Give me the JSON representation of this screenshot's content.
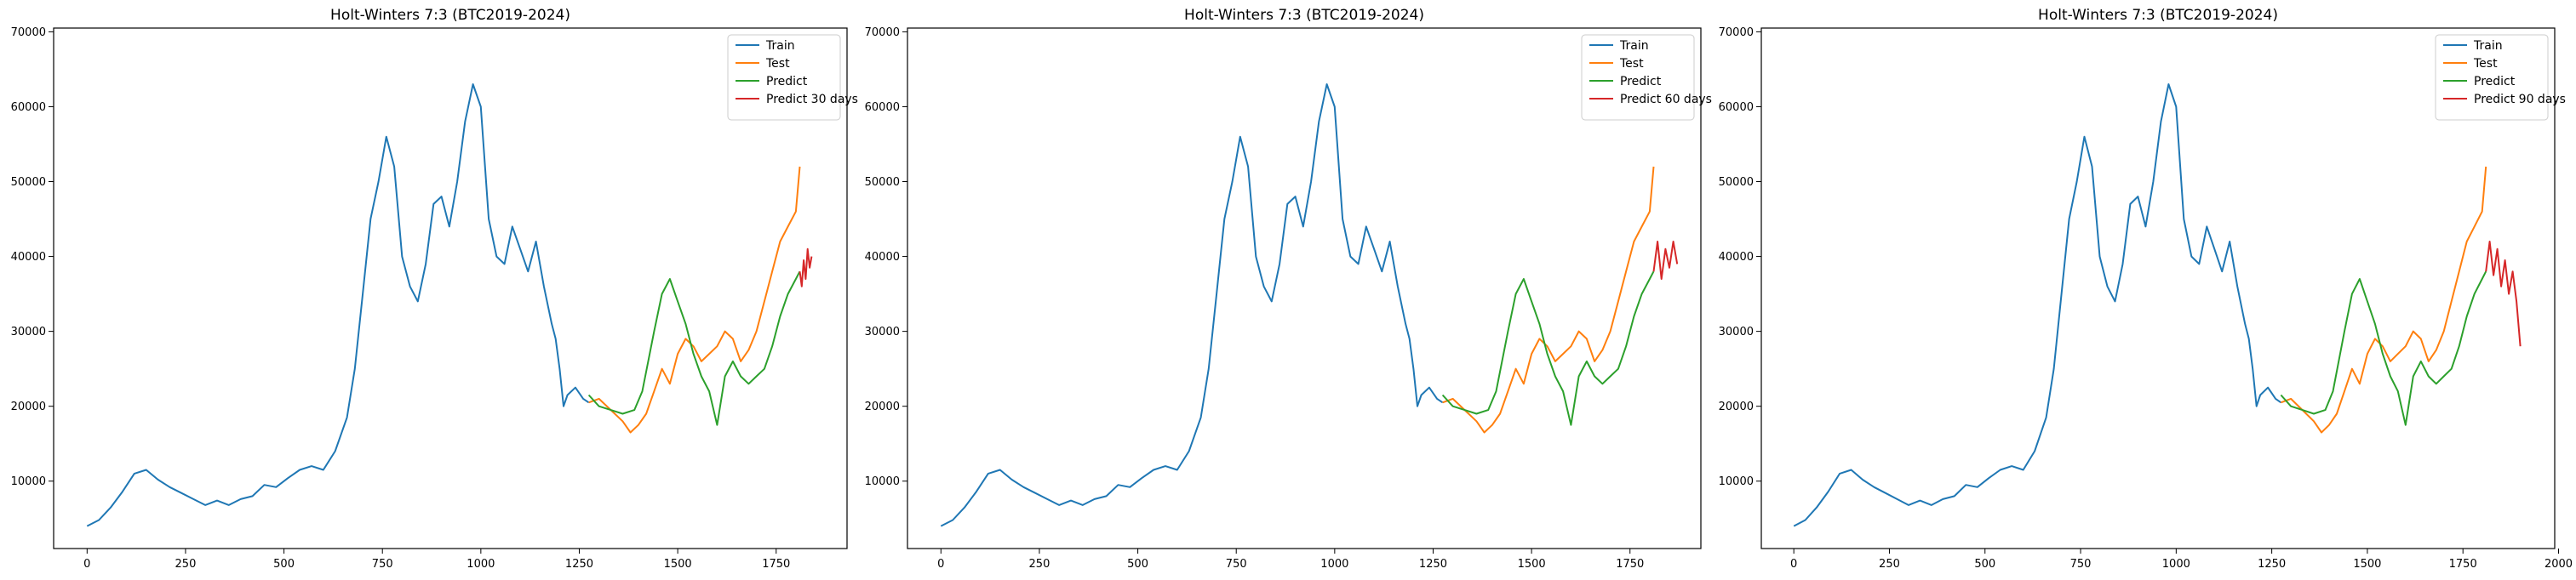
{
  "figure": {
    "colors": {
      "train": "#1f77b4",
      "test": "#ff7f0e",
      "predict": "#2ca02c",
      "forecast": "#d62728"
    }
  },
  "chart_data": [
    {
      "type": "line",
      "title": "Holt-Winters 7:3 (BTC2019-2024)",
      "xlabel": "",
      "ylabel": "",
      "xlim": [
        -85,
        1930
      ],
      "ylim": [
        1000,
        70500
      ],
      "x_ticks": [
        0,
        250,
        500,
        750,
        1000,
        1250,
        1500,
        1750
      ],
      "y_ticks": [
        10000,
        20000,
        30000,
        40000,
        50000,
        60000,
        70000
      ],
      "grid": false,
      "legend": "top-right",
      "series": [
        {
          "name": "Train",
          "key": "train",
          "x": [
            0,
            30,
            60,
            90,
            120,
            150,
            180,
            210,
            240,
            270,
            300,
            330,
            360,
            390,
            420,
            450,
            480,
            510,
            540,
            570,
            600,
            630,
            660,
            680,
            700,
            720,
            740,
            760,
            780,
            800,
            820,
            840,
            860,
            880,
            900,
            920,
            940,
            960,
            980,
            1000,
            1020,
            1040,
            1060,
            1080,
            1100,
            1120,
            1140,
            1160,
            1180,
            1190,
            1200,
            1210,
            1220,
            1240,
            1260,
            1274
          ],
          "y": [
            4000,
            4800,
            6500,
            8600,
            11000,
            11500,
            10200,
            9200,
            8400,
            7600,
            6800,
            7400,
            6800,
            7600,
            8000,
            9500,
            9200,
            10400,
            11500,
            12000,
            11500,
            14000,
            18500,
            25000,
            35000,
            45000,
            50000,
            56000,
            52000,
            40000,
            36000,
            34000,
            39000,
            47000,
            48000,
            44000,
            50000,
            58000,
            63000,
            60000,
            45000,
            40000,
            39000,
            44000,
            41000,
            38000,
            42000,
            36000,
            31000,
            29000,
            25000,
            20000,
            21500,
            22500,
            21000,
            20500
          ]
        },
        {
          "name": "Test",
          "key": "test",
          "x": [
            1274,
            1300,
            1330,
            1360,
            1380,
            1400,
            1420,
            1440,
            1460,
            1480,
            1500,
            1520,
            1540,
            1560,
            1580,
            1600,
            1620,
            1640,
            1660,
            1680,
            1700,
            1720,
            1740,
            1760,
            1780,
            1800,
            1810
          ],
          "y": [
            20500,
            21000,
            19500,
            18000,
            16500,
            17500,
            19000,
            22000,
            25000,
            23000,
            27000,
            29000,
            28000,
            26000,
            27000,
            28000,
            30000,
            29000,
            26000,
            27500,
            30000,
            34000,
            38000,
            42000,
            44000,
            46000,
            52000
          ]
        },
        {
          "name": "Predict",
          "key": "predict",
          "x": [
            1274,
            1300,
            1330,
            1360,
            1390,
            1410,
            1440,
            1460,
            1480,
            1500,
            1520,
            1540,
            1560,
            1580,
            1600,
            1620,
            1640,
            1660,
            1680,
            1700,
            1720,
            1740,
            1760,
            1780,
            1800,
            1810
          ],
          "y": [
            21500,
            20000,
            19500,
            19000,
            19500,
            22000,
            30000,
            35000,
            37000,
            34000,
            31000,
            27000,
            24000,
            22000,
            17500,
            24000,
            26000,
            24000,
            23000,
            24000,
            25000,
            28000,
            32000,
            35000,
            37000,
            38000
          ]
        },
        {
          "name": "Predict 30 days",
          "key": "forecast",
          "x": [
            1810,
            1815,
            1820,
            1825,
            1830,
            1835,
            1840
          ],
          "y": [
            38000,
            36000,
            39500,
            37000,
            41000,
            38500,
            40000
          ]
        }
      ]
    },
    {
      "type": "line",
      "title": "Holt-Winters 7:3 (BTC2019-2024)",
      "xlabel": "",
      "ylabel": "",
      "xlim": [
        -85,
        1930
      ],
      "ylim": [
        1000,
        70500
      ],
      "x_ticks": [
        0,
        250,
        500,
        750,
        1000,
        1250,
        1500,
        1750
      ],
      "y_ticks": [
        10000,
        20000,
        30000,
        40000,
        50000,
        60000,
        70000
      ],
      "grid": false,
      "legend": "top-right",
      "series": [
        {
          "name": "Train",
          "key": "train",
          "x": [
            0,
            30,
            60,
            90,
            120,
            150,
            180,
            210,
            240,
            270,
            300,
            330,
            360,
            390,
            420,
            450,
            480,
            510,
            540,
            570,
            600,
            630,
            660,
            680,
            700,
            720,
            740,
            760,
            780,
            800,
            820,
            840,
            860,
            880,
            900,
            920,
            940,
            960,
            980,
            1000,
            1020,
            1040,
            1060,
            1080,
            1100,
            1120,
            1140,
            1160,
            1180,
            1190,
            1200,
            1210,
            1220,
            1240,
            1260,
            1274
          ],
          "y": [
            4000,
            4800,
            6500,
            8600,
            11000,
            11500,
            10200,
            9200,
            8400,
            7600,
            6800,
            7400,
            6800,
            7600,
            8000,
            9500,
            9200,
            10400,
            11500,
            12000,
            11500,
            14000,
            18500,
            25000,
            35000,
            45000,
            50000,
            56000,
            52000,
            40000,
            36000,
            34000,
            39000,
            47000,
            48000,
            44000,
            50000,
            58000,
            63000,
            60000,
            45000,
            40000,
            39000,
            44000,
            41000,
            38000,
            42000,
            36000,
            31000,
            29000,
            25000,
            20000,
            21500,
            22500,
            21000,
            20500
          ]
        },
        {
          "name": "Test",
          "key": "test",
          "x": [
            1274,
            1300,
            1330,
            1360,
            1380,
            1400,
            1420,
            1440,
            1460,
            1480,
            1500,
            1520,
            1540,
            1560,
            1580,
            1600,
            1620,
            1640,
            1660,
            1680,
            1700,
            1720,
            1740,
            1760,
            1780,
            1800,
            1810
          ],
          "y": [
            20500,
            21000,
            19500,
            18000,
            16500,
            17500,
            19000,
            22000,
            25000,
            23000,
            27000,
            29000,
            28000,
            26000,
            27000,
            28000,
            30000,
            29000,
            26000,
            27500,
            30000,
            34000,
            38000,
            42000,
            44000,
            46000,
            52000
          ]
        },
        {
          "name": "Predict",
          "key": "predict",
          "x": [
            1274,
            1300,
            1330,
            1360,
            1390,
            1410,
            1440,
            1460,
            1480,
            1500,
            1520,
            1540,
            1560,
            1580,
            1600,
            1620,
            1640,
            1660,
            1680,
            1700,
            1720,
            1740,
            1760,
            1780,
            1800,
            1810
          ],
          "y": [
            21500,
            20000,
            19500,
            19000,
            19500,
            22000,
            30000,
            35000,
            37000,
            34000,
            31000,
            27000,
            24000,
            22000,
            17500,
            24000,
            26000,
            24000,
            23000,
            24000,
            25000,
            28000,
            32000,
            35000,
            37000,
            38000
          ]
        },
        {
          "name": "Predict 60 days",
          "key": "forecast",
          "x": [
            1810,
            1820,
            1830,
            1840,
            1850,
            1860,
            1870
          ],
          "y": [
            38000,
            42000,
            37000,
            41000,
            38500,
            42000,
            39000
          ]
        }
      ]
    },
    {
      "type": "line",
      "title": "Holt-Winters 7:3 (BTC2019-2024)",
      "xlabel": "",
      "ylabel": "",
      "xlim": [
        -85,
        1990
      ],
      "ylim": [
        1000,
        70500
      ],
      "x_ticks": [
        0,
        250,
        500,
        750,
        1000,
        1250,
        1500,
        1750,
        2000
      ],
      "y_ticks": [
        10000,
        20000,
        30000,
        40000,
        50000,
        60000,
        70000
      ],
      "grid": false,
      "legend": "top-right",
      "series": [
        {
          "name": "Train",
          "key": "train",
          "x": [
            0,
            30,
            60,
            90,
            120,
            150,
            180,
            210,
            240,
            270,
            300,
            330,
            360,
            390,
            420,
            450,
            480,
            510,
            540,
            570,
            600,
            630,
            660,
            680,
            700,
            720,
            740,
            760,
            780,
            800,
            820,
            840,
            860,
            880,
            900,
            920,
            940,
            960,
            980,
            1000,
            1020,
            1040,
            1060,
            1080,
            1100,
            1120,
            1140,
            1160,
            1180,
            1190,
            1200,
            1210,
            1220,
            1240,
            1260,
            1274
          ],
          "y": [
            4000,
            4800,
            6500,
            8600,
            11000,
            11500,
            10200,
            9200,
            8400,
            7600,
            6800,
            7400,
            6800,
            7600,
            8000,
            9500,
            9200,
            10400,
            11500,
            12000,
            11500,
            14000,
            18500,
            25000,
            35000,
            45000,
            50000,
            56000,
            52000,
            40000,
            36000,
            34000,
            39000,
            47000,
            48000,
            44000,
            50000,
            58000,
            63000,
            60000,
            45000,
            40000,
            39000,
            44000,
            41000,
            38000,
            42000,
            36000,
            31000,
            29000,
            25000,
            20000,
            21500,
            22500,
            21000,
            20500
          ]
        },
        {
          "name": "Test",
          "key": "test",
          "x": [
            1274,
            1300,
            1330,
            1360,
            1380,
            1400,
            1420,
            1440,
            1460,
            1480,
            1500,
            1520,
            1540,
            1560,
            1580,
            1600,
            1620,
            1640,
            1660,
            1680,
            1700,
            1720,
            1740,
            1760,
            1780,
            1800,
            1810
          ],
          "y": [
            20500,
            21000,
            19500,
            18000,
            16500,
            17500,
            19000,
            22000,
            25000,
            23000,
            27000,
            29000,
            28000,
            26000,
            27000,
            28000,
            30000,
            29000,
            26000,
            27500,
            30000,
            34000,
            38000,
            42000,
            44000,
            46000,
            52000
          ]
        },
        {
          "name": "Predict",
          "key": "predict",
          "x": [
            1274,
            1300,
            1330,
            1360,
            1390,
            1410,
            1440,
            1460,
            1480,
            1500,
            1520,
            1540,
            1560,
            1580,
            1600,
            1620,
            1640,
            1660,
            1680,
            1700,
            1720,
            1740,
            1760,
            1780,
            1800,
            1810
          ],
          "y": [
            21500,
            20000,
            19500,
            19000,
            19500,
            22000,
            30000,
            35000,
            37000,
            34000,
            31000,
            27000,
            24000,
            22000,
            17500,
            24000,
            26000,
            24000,
            23000,
            24000,
            25000,
            28000,
            32000,
            35000,
            37000,
            38000
          ]
        },
        {
          "name": "Predict 90 days",
          "key": "forecast",
          "x": [
            1810,
            1820,
            1830,
            1840,
            1850,
            1860,
            1870,
            1880,
            1890,
            1900
          ],
          "y": [
            38000,
            42000,
            37500,
            41000,
            36000,
            39500,
            35000,
            38000,
            34000,
            28000
          ]
        }
      ]
    }
  ]
}
